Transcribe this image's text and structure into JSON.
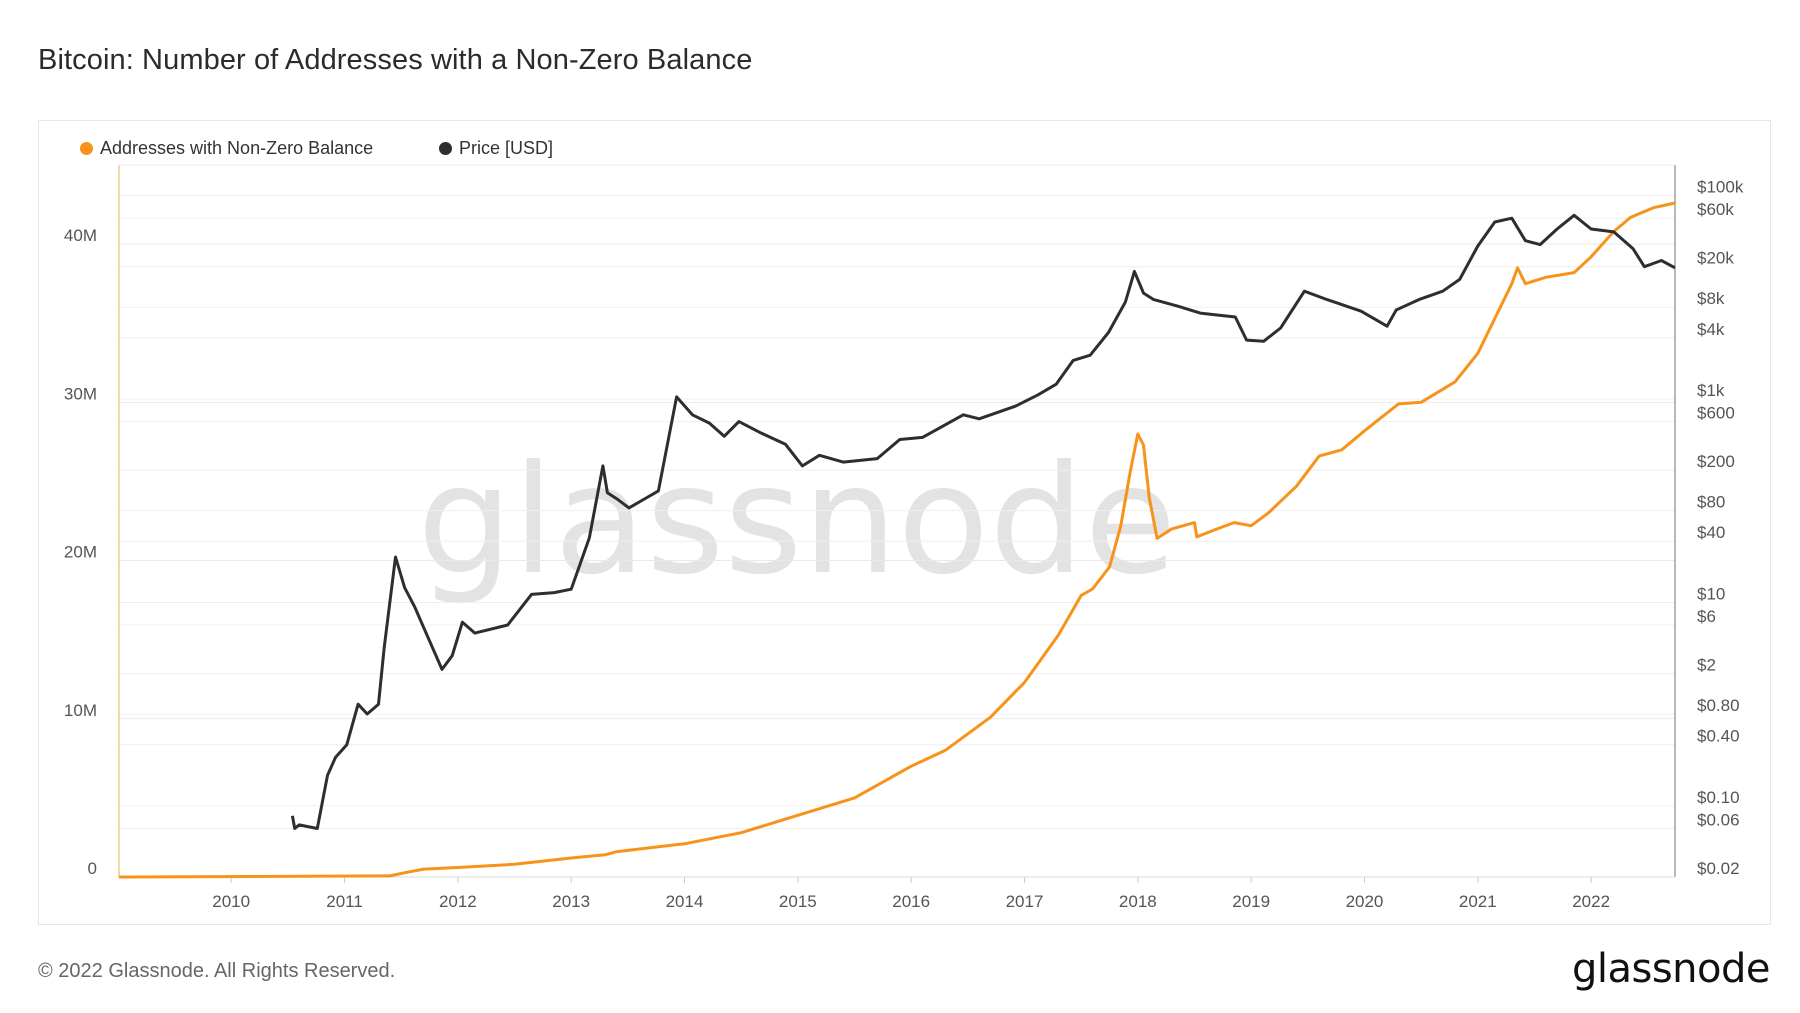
{
  "title": "Bitcoin: Number of Addresses with a Non-Zero Balance",
  "footer": "© 2022 Glassnode. All Rights Reserved.",
  "logo": "glassnode",
  "watermark": "glassnode",
  "chart_data": {
    "type": "line",
    "title": "Bitcoin: Number of Addresses with a Non-Zero Balance",
    "legend_position": "top-left",
    "grid": true,
    "x_axis": {
      "type": "date",
      "range": [
        2009.01,
        2022.74
      ],
      "tick_labels": [
        "2010",
        "2011",
        "2012",
        "2013",
        "2014",
        "2015",
        "2016",
        "2017",
        "2018",
        "2019",
        "2020",
        "2021",
        "2022"
      ]
    },
    "y_left": {
      "scale": "linear",
      "range": [
        0,
        45000000
      ],
      "ticks": [
        0,
        10000000,
        20000000,
        30000000,
        40000000
      ],
      "tick_labels": [
        "0",
        "10M",
        "20M",
        "30M",
        "40M"
      ]
    },
    "y_right": {
      "scale": "log",
      "range": [
        0.02,
        200000
      ],
      "ticks": [
        100000,
        60000,
        20000,
        8000,
        4000,
        1000,
        600,
        200,
        80,
        40,
        10,
        6,
        2,
        0.8,
        0.4,
        0.1,
        0.06,
        0.02
      ],
      "tick_labels": [
        "$100k",
        "$60k",
        "$20k",
        "$8k",
        "$4k",
        "$1k",
        "$600",
        "$200",
        "$80",
        "$40",
        "$10",
        "$6",
        "$2",
        "$0.80",
        "$0.40",
        "$0.10",
        "$0.06",
        "$0.02"
      ]
    },
    "series": [
      {
        "name": "Addresses with Non-Zero Balance",
        "axis": "left",
        "color": "#f7931a",
        "points": [
          [
            2009.01,
            0
          ],
          [
            2011.4,
            70000
          ],
          [
            2011.55,
            300000
          ],
          [
            2011.7,
            500000
          ],
          [
            2012.0,
            600000
          ],
          [
            2012.5,
            800000
          ],
          [
            2013.0,
            1200000
          ],
          [
            2013.3,
            1400000
          ],
          [
            2013.4,
            1600000
          ],
          [
            2014.0,
            2100000
          ],
          [
            2014.5,
            2800000
          ],
          [
            2015.0,
            3900000
          ],
          [
            2015.5,
            5000000
          ],
          [
            2016.0,
            7000000
          ],
          [
            2016.3,
            8000000
          ],
          [
            2016.7,
            10100000
          ],
          [
            2017.0,
            12300000
          ],
          [
            2017.3,
            15300000
          ],
          [
            2017.5,
            17800000
          ],
          [
            2017.6,
            18200000
          ],
          [
            2017.75,
            19600000
          ],
          [
            2017.85,
            22200000
          ],
          [
            2017.93,
            25500000
          ],
          [
            2018.0,
            28000000
          ],
          [
            2018.05,
            27300000
          ],
          [
            2018.1,
            24000000
          ],
          [
            2018.17,
            21400000
          ],
          [
            2018.3,
            22000000
          ],
          [
            2018.5,
            22400000
          ],
          [
            2018.52,
            21500000
          ],
          [
            2018.7,
            22000000
          ],
          [
            2018.85,
            22400000
          ],
          [
            2019.0,
            22200000
          ],
          [
            2019.15,
            23000000
          ],
          [
            2019.4,
            24700000
          ],
          [
            2019.6,
            26600000
          ],
          [
            2019.8,
            27000000
          ],
          [
            2020.0,
            28200000
          ],
          [
            2020.3,
            29900000
          ],
          [
            2020.5,
            30000000
          ],
          [
            2020.8,
            31300000
          ],
          [
            2021.0,
            33100000
          ],
          [
            2021.15,
            35300000
          ],
          [
            2021.3,
            37500000
          ],
          [
            2021.35,
            38500000
          ],
          [
            2021.42,
            37500000
          ],
          [
            2021.6,
            37900000
          ],
          [
            2021.85,
            38200000
          ],
          [
            2022.0,
            39200000
          ],
          [
            2022.2,
            40800000
          ],
          [
            2022.35,
            41700000
          ],
          [
            2022.55,
            42300000
          ],
          [
            2022.74,
            42600000
          ]
        ]
      },
      {
        "name": "Price [USD]",
        "axis": "right",
        "color": "#2e2e2e",
        "points": [
          [
            2010.54,
            0.08
          ],
          [
            2010.56,
            0.06
          ],
          [
            2010.6,
            0.065
          ],
          [
            2010.76,
            0.06
          ],
          [
            2010.85,
            0.2
          ],
          [
            2010.92,
            0.3
          ],
          [
            2011.02,
            0.4
          ],
          [
            2011.12,
            1.0
          ],
          [
            2011.2,
            0.8
          ],
          [
            2011.3,
            1.0
          ],
          [
            2011.35,
            3.6
          ],
          [
            2011.45,
            28
          ],
          [
            2011.53,
            14
          ],
          [
            2011.62,
            9
          ],
          [
            2011.73,
            4.7
          ],
          [
            2011.86,
            2.2
          ],
          [
            2011.95,
            3
          ],
          [
            2012.04,
            6.4
          ],
          [
            2012.15,
            5
          ],
          [
            2012.44,
            6
          ],
          [
            2012.65,
            12
          ],
          [
            2012.85,
            12.5
          ],
          [
            2013.0,
            13.5
          ],
          [
            2013.16,
            43
          ],
          [
            2013.28,
            220
          ],
          [
            2013.32,
            120
          ],
          [
            2013.4,
            105
          ],
          [
            2013.51,
            85
          ],
          [
            2013.77,
            125
          ],
          [
            2013.93,
            1050
          ],
          [
            2014.07,
            700
          ],
          [
            2014.22,
            580
          ],
          [
            2014.35,
            430
          ],
          [
            2014.48,
            600
          ],
          [
            2014.68,
            460
          ],
          [
            2014.89,
            360
          ],
          [
            2015.04,
            220
          ],
          [
            2015.19,
            280
          ],
          [
            2015.4,
            240
          ],
          [
            2015.7,
            260
          ],
          [
            2015.9,
            400
          ],
          [
            2016.1,
            420
          ],
          [
            2016.46,
            700
          ],
          [
            2016.6,
            640
          ],
          [
            2016.92,
            850
          ],
          [
            2017.12,
            1100
          ],
          [
            2017.28,
            1400
          ],
          [
            2017.43,
            2400
          ],
          [
            2017.58,
            2700
          ],
          [
            2017.74,
            4500
          ],
          [
            2017.89,
            9000
          ],
          [
            2017.97,
            18000
          ],
          [
            2018.05,
            11000
          ],
          [
            2018.14,
            9500
          ],
          [
            2018.35,
            8200
          ],
          [
            2018.55,
            7000
          ],
          [
            2018.86,
            6400
          ],
          [
            2018.96,
            3800
          ],
          [
            2019.11,
            3700
          ],
          [
            2019.26,
            5000
          ],
          [
            2019.47,
            11500
          ],
          [
            2019.67,
            9500
          ],
          [
            2019.97,
            7300
          ],
          [
            2020.2,
            5200
          ],
          [
            2020.28,
            7500
          ],
          [
            2020.48,
            9500
          ],
          [
            2020.69,
            11500
          ],
          [
            2020.84,
            15000
          ],
          [
            2021.0,
            32000
          ],
          [
            2021.15,
            55000
          ],
          [
            2021.3,
            60000
          ],
          [
            2021.42,
            36000
          ],
          [
            2021.55,
            33000
          ],
          [
            2021.7,
            47000
          ],
          [
            2021.85,
            64000
          ],
          [
            2022.0,
            47000
          ],
          [
            2022.2,
            44000
          ],
          [
            2022.37,
            30000
          ],
          [
            2022.47,
            20000
          ],
          [
            2022.62,
            23000
          ],
          [
            2022.74,
            19500
          ]
        ]
      }
    ]
  }
}
